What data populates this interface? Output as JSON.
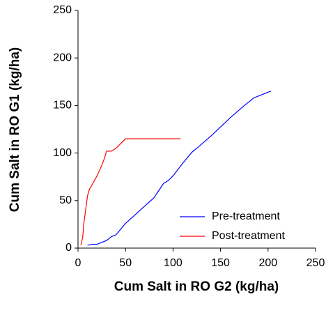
{
  "chart_data": {
    "type": "line",
    "x_label": "Cum Salt in RO G2 (kg/ha)",
    "y_label": "Cum Salt in RO G1 (kg/ha)",
    "xlim": [
      0,
      250
    ],
    "xticks": [
      0,
      50,
      100,
      150,
      200,
      250
    ],
    "ylim": [
      0,
      250
    ],
    "yticks": [
      0,
      50,
      100,
      150,
      200,
      250
    ],
    "legend": "lower right",
    "series": [
      {
        "name": "Pre-treatment",
        "color": "#0000ff",
        "x": [
          10,
          15,
          20,
          25,
          30,
          35,
          40,
          45,
          50,
          60,
          70,
          80,
          90,
          95,
          100,
          110,
          120,
          125,
          140,
          160,
          175,
          185,
          195,
          200,
          203
        ],
        "values": [
          3,
          4,
          4,
          6,
          8,
          12,
          14,
          20,
          26,
          35,
          44,
          53,
          68,
          71,
          76,
          89,
          101,
          105,
          118,
          137,
          150,
          158,
          162,
          164,
          165
        ]
      },
      {
        "name": "Post-treatment",
        "color": "#ff0000",
        "x": [
          3,
          5,
          6,
          8,
          10,
          12,
          15,
          20,
          25,
          28,
          30,
          35,
          40,
          45,
          50,
          70,
          90,
          108
        ],
        "values": [
          3,
          12,
          25,
          40,
          55,
          62,
          67,
          76,
          87,
          95,
          102,
          102,
          105,
          110,
          115,
          115,
          115,
          115
        ]
      }
    ]
  }
}
